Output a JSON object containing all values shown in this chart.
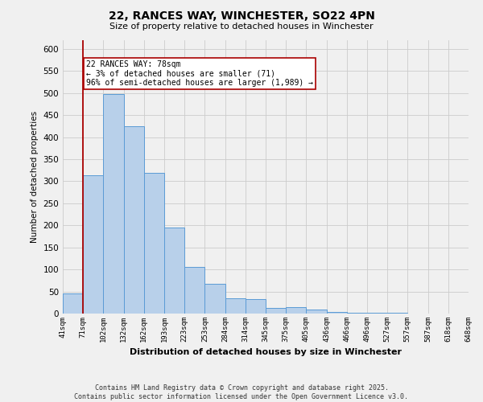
{
  "title": "22, RANCES WAY, WINCHESTER, SO22 4PN",
  "subtitle": "Size of property relative to detached houses in Winchester",
  "xlabel": "Distribution of detached houses by size in Winchester",
  "ylabel": "Number of detached properties",
  "bar_values": [
    46,
    314,
    497,
    424,
    319,
    195,
    105,
    68,
    35,
    32,
    13,
    14,
    9,
    4,
    2,
    1,
    1
  ],
  "bin_labels": [
    "41sqm",
    "71sqm",
    "102sqm",
    "132sqm",
    "162sqm",
    "193sqm",
    "223sqm",
    "253sqm",
    "284sqm",
    "314sqm",
    "345sqm",
    "375sqm",
    "405sqm",
    "436sqm",
    "466sqm",
    "496sqm",
    "527sqm",
    "557sqm",
    "587sqm",
    "618sqm",
    "648sqm"
  ],
  "bar_color": "#b8d0ea",
  "bar_edge_color": "#5b9bd5",
  "property_line_color": "#aa0000",
  "annotation_text": "22 RANCES WAY: 78sqm\n← 3% of detached houses are smaller (71)\n96% of semi-detached houses are larger (1,989) →",
  "annotation_box_color": "#ffffff",
  "annotation_box_edge_color": "#aa0000",
  "ylim": [
    0,
    620
  ],
  "yticks": [
    0,
    50,
    100,
    150,
    200,
    250,
    300,
    350,
    400,
    450,
    500,
    550,
    600
  ],
  "footer_line1": "Contains HM Land Registry data © Crown copyright and database right 2025.",
  "footer_line2": "Contains public sector information licensed under the Open Government Licence v3.0.",
  "bg_color": "#f0f0f0",
  "grid_color": "#cccccc",
  "figsize": [
    6.0,
    5.0
  ],
  "dpi": 100
}
